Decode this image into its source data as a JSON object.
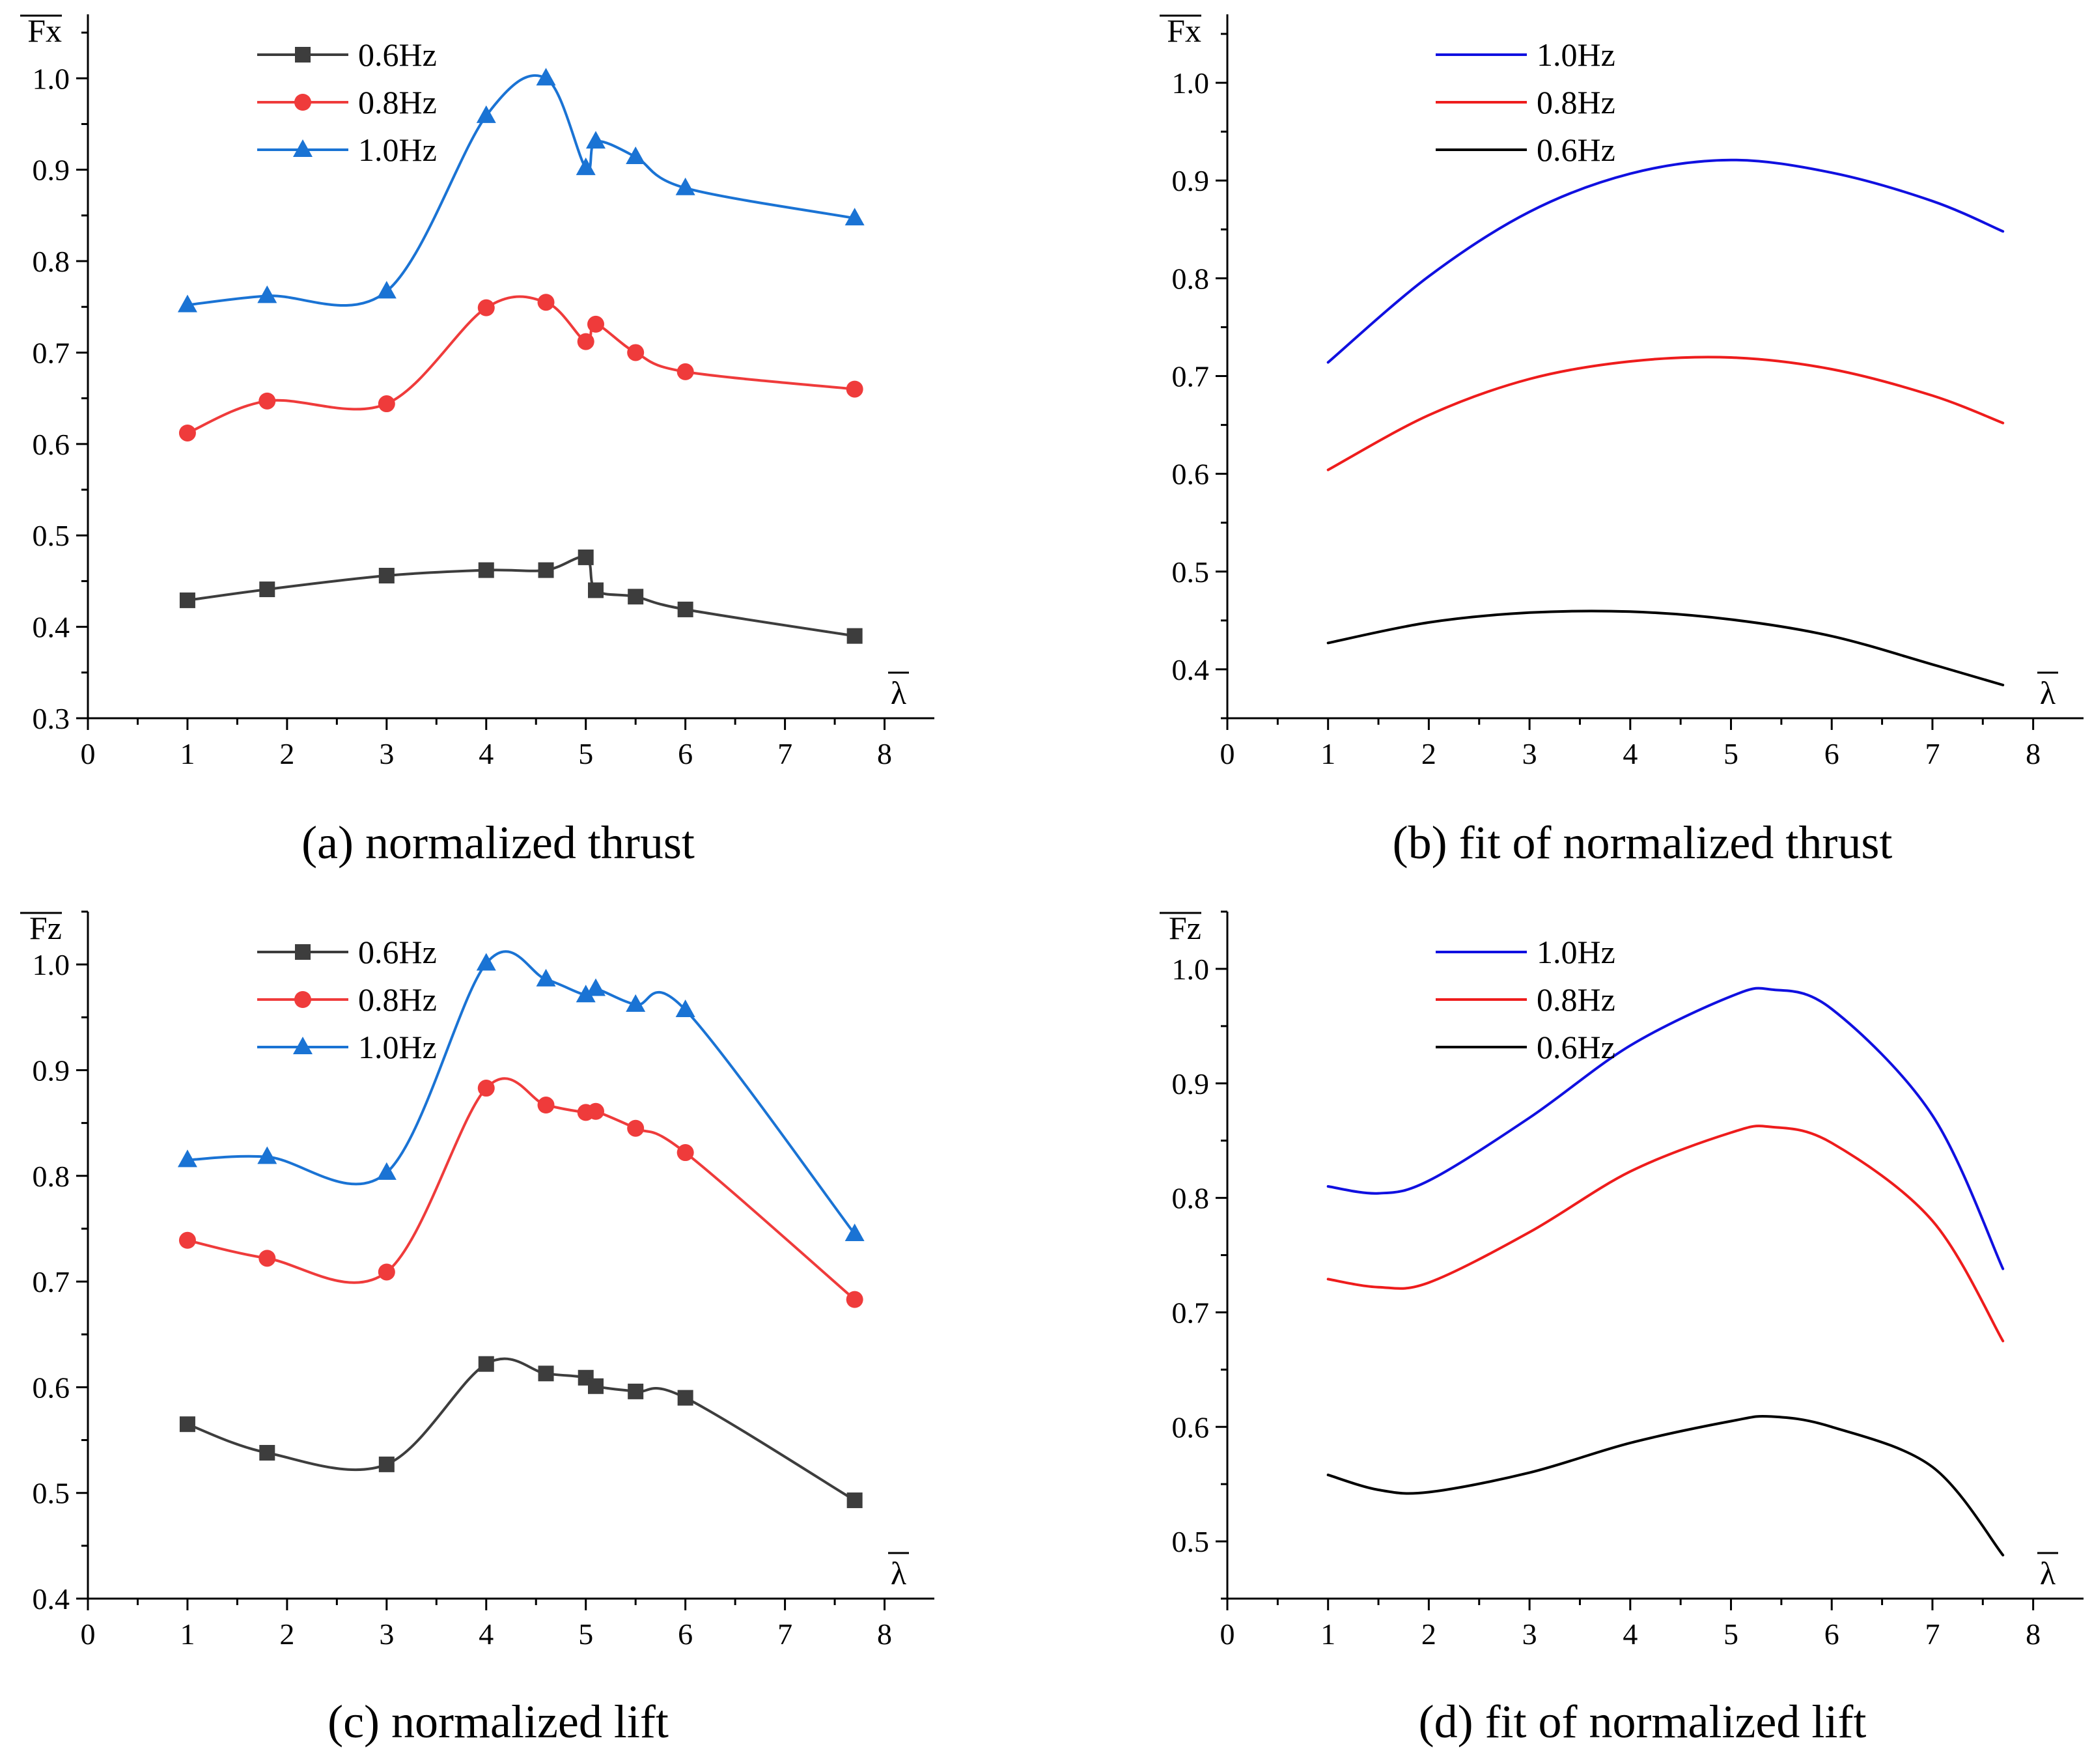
{
  "chart_data": [
    {
      "id": "a",
      "type": "line",
      "caption": "(a) normalized thrust",
      "ylabel": "Fx",
      "xlabel": "λ",
      "xlim": [
        0,
        8.5
      ],
      "ylim": [
        0.3,
        1.07
      ],
      "xticks": [
        0,
        1,
        2,
        3,
        4,
        5,
        6,
        7,
        8
      ],
      "yticks": [
        0.3,
        0.4,
        0.5,
        0.6,
        0.7,
        0.8,
        0.9,
        1.0
      ],
      "ytick_labels": [
        "0.3",
        "0.4",
        "0.5",
        "0.6",
        "0.7",
        "0.8",
        "0.9",
        "1.0"
      ],
      "legend_position": "top-left",
      "markers": true,
      "x": [
        1,
        1.8,
        3,
        4,
        4.6,
        5,
        5.1,
        5.5,
        6,
        7.7
      ],
      "series": [
        {
          "name": "0.6Hz",
          "color": "#3d3d3d",
          "marker": "square",
          "values": [
            0.429,
            0.441,
            0.456,
            0.462,
            0.462,
            0.476,
            0.44,
            0.433,
            0.419,
            0.39
          ]
        },
        {
          "name": "0.8Hz",
          "color": "#ef3b3b",
          "marker": "circle",
          "values": [
            0.612,
            0.647,
            0.644,
            0.749,
            0.755,
            0.712,
            0.731,
            0.7,
            0.679,
            0.66
          ]
        },
        {
          "name": "1.0Hz",
          "color": "#1a73d4",
          "marker": "triangle",
          "values": [
            0.752,
            0.762,
            0.767,
            0.959,
            1.0,
            0.902,
            0.931,
            0.914,
            0.88,
            0.847
          ]
        }
      ]
    },
    {
      "id": "b",
      "type": "line",
      "caption": "(b) fit of normalized thrust",
      "ylabel": "Fx",
      "xlabel": "λ",
      "xlim": [
        0,
        8.5
      ],
      "ylim": [
        0.35,
        1.07
      ],
      "xticks": [
        0,
        1,
        2,
        3,
        4,
        5,
        6,
        7,
        8
      ],
      "yticks": [
        0.4,
        0.5,
        0.6,
        0.7,
        0.8,
        0.9,
        1.0
      ],
      "ytick_labels": [
        "0.4",
        "0.5",
        "0.6",
        "0.7",
        "0.8",
        "0.9",
        "1.0"
      ],
      "legend_position": "top-left",
      "markers": false,
      "x": [
        1,
        2,
        3,
        4,
        5,
        6,
        7,
        7.7
      ],
      "series": [
        {
          "name": "1.0Hz",
          "color": "#1010e0",
          "values": [
            0.714,
            0.802,
            0.868,
            0.907,
            0.921,
            0.908,
            0.879,
            0.848
          ]
        },
        {
          "name": "0.8Hz",
          "color": "#ee1c1c",
          "values": [
            0.604,
            0.66,
            0.697,
            0.715,
            0.719,
            0.707,
            0.68,
            0.652
          ]
        },
        {
          "name": "0.6Hz",
          "color": "#000000",
          "values": [
            0.427,
            0.448,
            0.458,
            0.459,
            0.451,
            0.434,
            0.405,
            0.384
          ]
        }
      ]
    },
    {
      "id": "c",
      "type": "line",
      "caption": "(c) normalized lift",
      "ylabel": "Fz",
      "xlabel": "λ",
      "xlim": [
        0,
        8.5
      ],
      "ylim": [
        0.4,
        1.05
      ],
      "xticks": [
        0,
        1,
        2,
        3,
        4,
        5,
        6,
        7,
        8
      ],
      "yticks": [
        0.4,
        0.5,
        0.6,
        0.7,
        0.8,
        0.9,
        1.0
      ],
      "ytick_labels": [
        "0.4",
        "0.5",
        "0.6",
        "0.7",
        "0.8",
        "0.9",
        "1.0"
      ],
      "legend_position": "top-left",
      "markers": true,
      "x": [
        1,
        1.8,
        3,
        4,
        4.6,
        5,
        5.1,
        5.5,
        6,
        7.7
      ],
      "series": [
        {
          "name": "0.6Hz",
          "color": "#3d3d3d",
          "marker": "square",
          "values": [
            0.565,
            0.538,
            0.527,
            0.622,
            0.613,
            0.609,
            0.601,
            0.596,
            0.59,
            0.493
          ]
        },
        {
          "name": "0.8Hz",
          "color": "#ef3b3b",
          "marker": "circle",
          "values": [
            0.739,
            0.722,
            0.709,
            0.883,
            0.867,
            0.86,
            0.861,
            0.845,
            0.822,
            0.683
          ]
        },
        {
          "name": "1.0Hz",
          "color": "#1a73d4",
          "marker": "triangle",
          "values": [
            0.815,
            0.818,
            0.803,
            1.001,
            0.986,
            0.971,
            0.977,
            0.962,
            0.957,
            0.745
          ]
        }
      ]
    },
    {
      "id": "d",
      "type": "line",
      "caption": "(d) fit of normalized lift",
      "ylabel": "Fz",
      "xlabel": "λ",
      "xlim": [
        0,
        8.5
      ],
      "ylim": [
        0.45,
        1.05
      ],
      "xticks": [
        0,
        1,
        2,
        3,
        4,
        5,
        6,
        7,
        8
      ],
      "yticks": [
        0.5,
        0.6,
        0.7,
        0.8,
        0.9,
        1.0
      ],
      "ytick_labels": [
        "0.5",
        "0.6",
        "0.7",
        "0.8",
        "0.9",
        "1.0"
      ],
      "legend_position": "top-left",
      "markers": false,
      "x": [
        1,
        1.5,
        2,
        3,
        4,
        5,
        5.4,
        6,
        7,
        7.7
      ],
      "series": [
        {
          "name": "1.0Hz",
          "color": "#1010e0",
          "values": [
            0.81,
            0.804,
            0.815,
            0.87,
            0.933,
            0.976,
            0.982,
            0.965,
            0.872,
            0.738
          ]
        },
        {
          "name": "0.8Hz",
          "color": "#ee1c1c",
          "values": [
            0.729,
            0.722,
            0.726,
            0.77,
            0.823,
            0.857,
            0.862,
            0.848,
            0.78,
            0.675
          ]
        },
        {
          "name": "0.6Hz",
          "color": "#000000",
          "values": [
            0.558,
            0.545,
            0.543,
            0.56,
            0.586,
            0.605,
            0.609,
            0.6,
            0.565,
            0.488
          ]
        }
      ]
    }
  ]
}
